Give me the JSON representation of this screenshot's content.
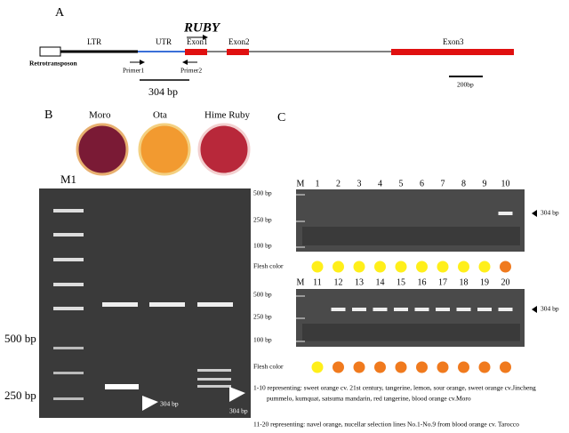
{
  "panel_a": {
    "label": "A",
    "gene": "RUBY",
    "elements": [
      "LTR",
      "UTR",
      "Exon1",
      "Exon2",
      "Exon3"
    ],
    "retrotransposon": "Retrotransposon",
    "primers": [
      "Primer1",
      "Primer2"
    ],
    "amplicon": "304 bp",
    "scale": "200bp"
  },
  "panel_b": {
    "label": "B",
    "fruits": [
      "Moro",
      "Ota",
      "Hime Ruby"
    ],
    "marker": "M1",
    "size_labels": [
      "500 bp",
      "250 bp"
    ],
    "band_labels": [
      "304 bp",
      "304 bp"
    ]
  },
  "panel_c": {
    "label": "C",
    "gels": [
      {
        "lanes": [
          "M",
          "1",
          "2",
          "3",
          "4",
          "5",
          "6",
          "7",
          "8",
          "9",
          "10"
        ],
        "size_labels": [
          "500 bp",
          "250 bp",
          "100 bp"
        ],
        "band_label": "304 bp",
        "flesh_color_label": "Flesh color",
        "flesh_colors": [
          "#ffef1a",
          "#ffef1a",
          "#ffef1a",
          "#ffef1a",
          "#ffef1a",
          "#ffef1a",
          "#ffef1a",
          "#ffef1a",
          "#ffef1a",
          "#f07a1e"
        ]
      },
      {
        "lanes": [
          "M",
          "11",
          "12",
          "13",
          "14",
          "15",
          "16",
          "17",
          "18",
          "19",
          "20"
        ],
        "size_labels": [
          "500 bp",
          "250 bp",
          "100 bp"
        ],
        "band_label": "304 bp",
        "flesh_color_label": "Flesh color",
        "flesh_colors": [
          "#ffef1a",
          "#f07a1e",
          "#f07a1e",
          "#f07a1e",
          "#f07a1e",
          "#f07a1e",
          "#f07a1e",
          "#f07a1e",
          "#f07a1e",
          "#f07a1e"
        ]
      }
    ],
    "captions": [
      "1-10 representing: sweet orange cv. 21st century, tangerine, lemon, sour orange, sweet orange cv.Jincheng",
      "pummelo, kumquat, satsuma mandarin, red tangerine, blood orange cv.Moro",
      "11-20 representing: navel orange, nucellar selection lines No.1-No.9 from blood orange cv. Tarocco"
    ]
  }
}
